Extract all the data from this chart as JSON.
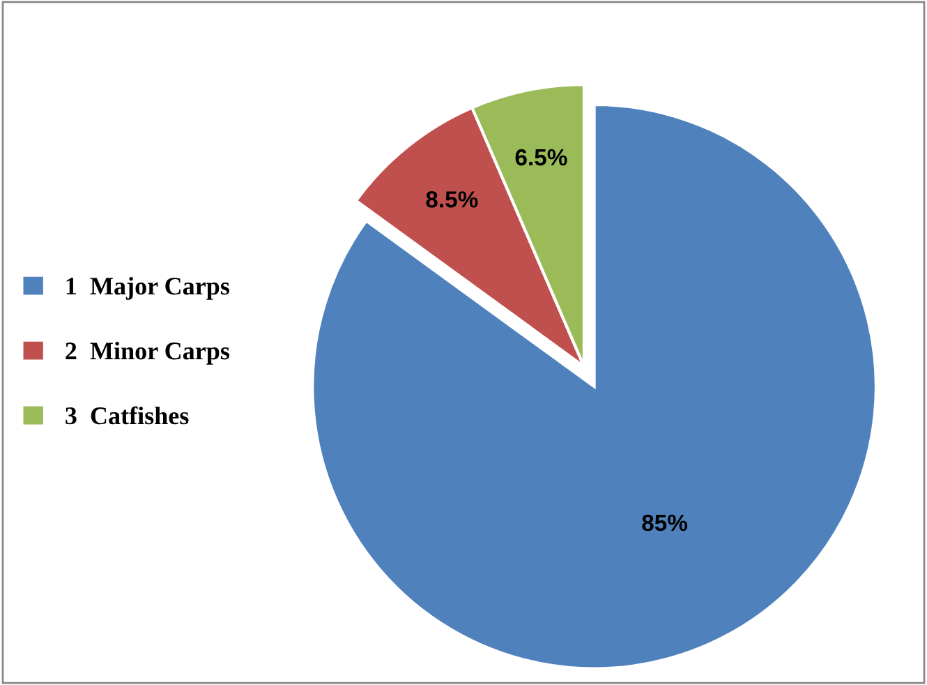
{
  "chart_data": {
    "type": "pie",
    "categories": [
      "1  Major Carps",
      "2  Minor Carps",
      "3  Catfishes"
    ],
    "values": [
      85,
      8.5,
      6.5
    ],
    "value_labels": [
      "85%",
      "8.5%",
      "6.5%"
    ],
    "colors": [
      "#4f81bd",
      "#c0504d",
      "#9bbb59"
    ],
    "legend": "left"
  }
}
